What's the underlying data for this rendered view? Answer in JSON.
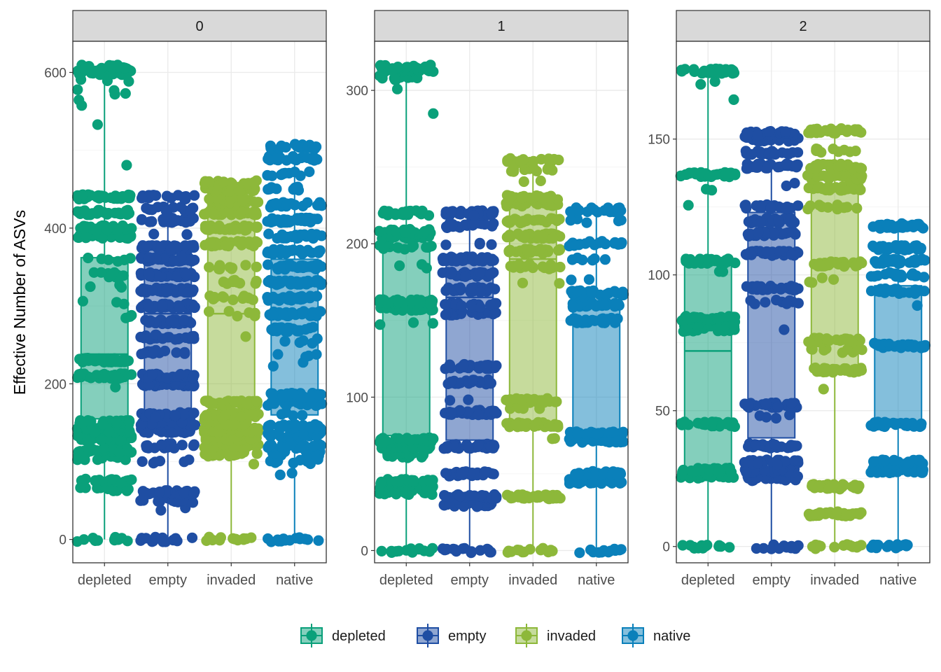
{
  "chart_data": {
    "type": "box",
    "ylabel": "Effective Number of ASVs",
    "xlabel": "",
    "categories": [
      "depleted",
      "empty",
      "invaded",
      "native"
    ],
    "colors": {
      "depleted": "#0aa07a",
      "empty": "#1f4ea3",
      "invaded": "#8db83a",
      "native": "#0a80ba"
    },
    "legend": {
      "position": "bottom",
      "items": [
        "depleted",
        "empty",
        "invaded",
        "native"
      ]
    },
    "grid": true,
    "panels": [
      {
        "label": "0",
        "ylim": [
          -30,
          640
        ],
        "yticks": [
          0,
          200,
          400,
          600
        ],
        "boxes": [
          {
            "name": "depleted",
            "min": 0,
            "q1": 155,
            "median": 238,
            "q3": 362,
            "max": 608
          },
          {
            "name": "empty",
            "min": 0,
            "q1": 155,
            "median": 290,
            "q3": 375,
            "max": 443
          },
          {
            "name": "invaded",
            "min": 0,
            "q1": 172,
            "median": 290,
            "q3": 440,
            "max": 458
          },
          {
            "name": "native",
            "min": 0,
            "q1": 160,
            "median": 310,
            "q3": 360,
            "max": 510
          }
        ],
        "points": {
          "depleted": [
            [
              0,
              12
            ],
            [
              65,
              16
            ],
            [
              75,
              18
            ],
            [
              105,
              14
            ],
            [
              115,
              30
            ],
            [
              130,
              40
            ],
            [
              140,
              40
            ],
            [
              150,
              30
            ],
            [
              195,
              1
            ],
            [
              210,
              30
            ],
            [
              230,
              40
            ],
            [
              285,
              3
            ],
            [
              305,
              3
            ],
            [
              325,
              3
            ],
            [
              340,
              10
            ],
            [
              360,
              6
            ],
            [
              390,
              40
            ],
            [
              400,
              30
            ],
            [
              420,
              30
            ],
            [
              440,
              40
            ],
            [
              480,
              1
            ],
            [
              530,
              1
            ],
            [
              555,
              1
            ],
            [
              565,
              1
            ],
            [
              575,
              4
            ],
            [
              590,
              3
            ],
            [
              600,
              40
            ],
            [
              607,
              20
            ]
          ],
          "empty": [
            [
              0,
              14
            ],
            [
              40,
              2
            ],
            [
              50,
              12
            ],
            [
              60,
              30
            ],
            [
              100,
              6
            ],
            [
              120,
              20
            ],
            [
              140,
              40
            ],
            [
              150,
              30
            ],
            [
              160,
              20
            ],
            [
              200,
              40
            ],
            [
              210,
              30
            ],
            [
              240,
              12
            ],
            [
              260,
              20
            ],
            [
              280,
              30
            ],
            [
              300,
              50
            ],
            [
              320,
              40
            ],
            [
              340,
              50
            ],
            [
              360,
              40
            ],
            [
              375,
              30
            ],
            [
              390,
              3
            ],
            [
              410,
              20
            ],
            [
              425,
              14
            ],
            [
              440,
              16
            ]
          ],
          "invaded": [
            [
              0,
              14
            ],
            [
              95,
              1
            ],
            [
              110,
              30
            ],
            [
              120,
              30
            ],
            [
              130,
              40
            ],
            [
              140,
              40
            ],
            [
              150,
              40
            ],
            [
              160,
              40
            ],
            [
              175,
              40
            ],
            [
              260,
              1
            ],
            [
              290,
              6
            ],
            [
              310,
              12
            ],
            [
              330,
              10
            ],
            [
              350,
              10
            ],
            [
              380,
              30
            ],
            [
              400,
              30
            ],
            [
              420,
              40
            ],
            [
              435,
              40
            ],
            [
              450,
              40
            ],
            [
              458,
              20
            ]
          ],
          "native": [
            [
              0,
              14
            ],
            [
              85,
              2
            ],
            [
              100,
              10
            ],
            [
              110,
              20
            ],
            [
              120,
              30
            ],
            [
              135,
              30
            ],
            [
              145,
              30
            ],
            [
              160,
              4
            ],
            [
              175,
              20
            ],
            [
              185,
              30
            ],
            [
              225,
              2
            ],
            [
              235,
              4
            ],
            [
              255,
              6
            ],
            [
              270,
              20
            ],
            [
              290,
              30
            ],
            [
              310,
              30
            ],
            [
              330,
              30
            ],
            [
              350,
              30
            ],
            [
              370,
              30
            ],
            [
              390,
              30
            ],
            [
              410,
              30
            ],
            [
              430,
              20
            ],
            [
              450,
              10
            ],
            [
              470,
              10
            ],
            [
              490,
              20
            ],
            [
              505,
              20
            ]
          ]
        }
      },
      {
        "label": "1",
        "ylim": [
          -8,
          332
        ],
        "yticks": [
          0,
          100,
          200,
          300
        ],
        "boxes": [
          {
            "name": "depleted",
            "min": 0,
            "q1": 75,
            "median": 158,
            "q3": 205,
            "max": 315
          },
          {
            "name": "empty",
            "min": 0,
            "q1": 72,
            "median": 165,
            "q3": 190,
            "max": 222
          },
          {
            "name": "invaded",
            "min": 0,
            "q1": 82,
            "median": 190,
            "q3": 226,
            "max": 255
          },
          {
            "name": "native",
            "min": 0,
            "q1": 75,
            "median": 150,
            "q3": 168,
            "max": 222
          }
        ],
        "points": {
          "depleted": [
            [
              0,
              14
            ],
            [
              38,
              20
            ],
            [
              42,
              30
            ],
            [
              45,
              24
            ],
            [
              62,
              16
            ],
            [
              68,
              30
            ],
            [
              72,
              30
            ],
            [
              147,
              3
            ],
            [
              158,
              30
            ],
            [
              162,
              30
            ],
            [
              185,
              3
            ],
            [
              198,
              12
            ],
            [
              205,
              30
            ],
            [
              208,
              20
            ],
            [
              220,
              24
            ],
            [
              285,
              1
            ],
            [
              300,
              1
            ],
            [
              308,
              10
            ],
            [
              313,
              30
            ],
            [
              315,
              20
            ]
          ],
          "empty": [
            [
              0,
              16
            ],
            [
              30,
              20
            ],
            [
              35,
              30
            ],
            [
              50,
              30
            ],
            [
              68,
              30
            ],
            [
              90,
              30
            ],
            [
              98,
              2
            ],
            [
              110,
              20
            ],
            [
              120,
              30
            ],
            [
              155,
              20
            ],
            [
              160,
              20
            ],
            [
              170,
              30
            ],
            [
              180,
              30
            ],
            [
              190,
              30
            ],
            [
              200,
              4
            ],
            [
              212,
              20
            ],
            [
              220,
              30
            ]
          ],
          "invaded": [
            [
              0,
              14
            ],
            [
              35,
              40
            ],
            [
              72,
              2
            ],
            [
              82,
              30
            ],
            [
              92,
              4
            ],
            [
              98,
              30
            ],
            [
              175,
              2
            ],
            [
              185,
              20
            ],
            [
              195,
              30
            ],
            [
              205,
              40
            ],
            [
              215,
              20
            ],
            [
              226,
              30
            ],
            [
              230,
              30
            ],
            [
              240,
              2
            ],
            [
              248,
              10
            ],
            [
              254,
              20
            ]
          ],
          "native": [
            [
              0,
              14
            ],
            [
              45,
              30
            ],
            [
              50,
              30
            ],
            [
              72,
              30
            ],
            [
              76,
              30
            ],
            [
              150,
              30
            ],
            [
              160,
              30
            ],
            [
              168,
              30
            ],
            [
              178,
              2
            ],
            [
              190,
              6
            ],
            [
              200,
              20
            ],
            [
              215,
              6
            ],
            [
              222,
              20
            ]
          ]
        }
      },
      {
        "label": "2",
        "ylim": [
          -6,
          186
        ],
        "yticks": [
          0,
          50,
          100,
          150
        ],
        "boxes": [
          {
            "name": "depleted",
            "min": 0,
            "q1": 28,
            "median": 72,
            "q3": 104,
            "max": 175
          },
          {
            "name": "empty",
            "min": 0,
            "q1": 40,
            "median": 95,
            "q3": 123,
            "max": 152
          },
          {
            "name": "invaded",
            "min": 0,
            "q1": 66,
            "median": 103,
            "q3": 131,
            "max": 153
          },
          {
            "name": "native",
            "min": 0,
            "q1": 46,
            "median": 74,
            "q3": 96,
            "max": 119
          }
        ],
        "points": {
          "depleted": [
            [
              0,
              14
            ],
            [
              26,
              30
            ],
            [
              28,
              30
            ],
            [
              45,
              30
            ],
            [
              80,
              20
            ],
            [
              82,
              30
            ],
            [
              84,
              30
            ],
            [
              101,
              2
            ],
            [
              105,
              30
            ],
            [
              125,
              1
            ],
            [
              131,
              2
            ],
            [
              137,
              30
            ],
            [
              165,
              1
            ],
            [
              171,
              2
            ],
            [
              175,
              30
            ]
          ],
          "empty": [
            [
              0,
              14
            ],
            [
              25,
              20
            ],
            [
              28,
              30
            ],
            [
              31,
              30
            ],
            [
              37,
              30
            ],
            [
              48,
              4
            ],
            [
              52,
              30
            ],
            [
              79,
              1
            ],
            [
              90,
              10
            ],
            [
              95,
              30
            ],
            [
              108,
              30
            ],
            [
              115,
              30
            ],
            [
              120,
              30
            ],
            [
              125,
              20
            ],
            [
              133,
              2
            ],
            [
              140,
              30
            ],
            [
              145,
              20
            ],
            [
              150,
              30
            ],
            [
              152,
              20
            ]
          ],
          "invaded": [
            [
              0,
              14
            ],
            [
              12,
              30
            ],
            [
              22,
              30
            ],
            [
              58,
              1
            ],
            [
              65,
              30
            ],
            [
              72,
              10
            ],
            [
              76,
              30
            ],
            [
              98,
              4
            ],
            [
              104,
              30
            ],
            [
              125,
              10
            ],
            [
              132,
              30
            ],
            [
              136,
              30
            ],
            [
              140,
              30
            ],
            [
              146,
              10
            ],
            [
              153,
              30
            ]
          ],
          "native": [
            [
              0,
              14
            ],
            [
              28,
              30
            ],
            [
              31,
              30
            ],
            [
              45,
              30
            ],
            [
              74,
              30
            ],
            [
              88,
              1
            ],
            [
              94,
              20
            ],
            [
              100,
              20
            ],
            [
              105,
              30
            ],
            [
              110,
              30
            ],
            [
              118,
              30
            ]
          ]
        }
      }
    ]
  }
}
